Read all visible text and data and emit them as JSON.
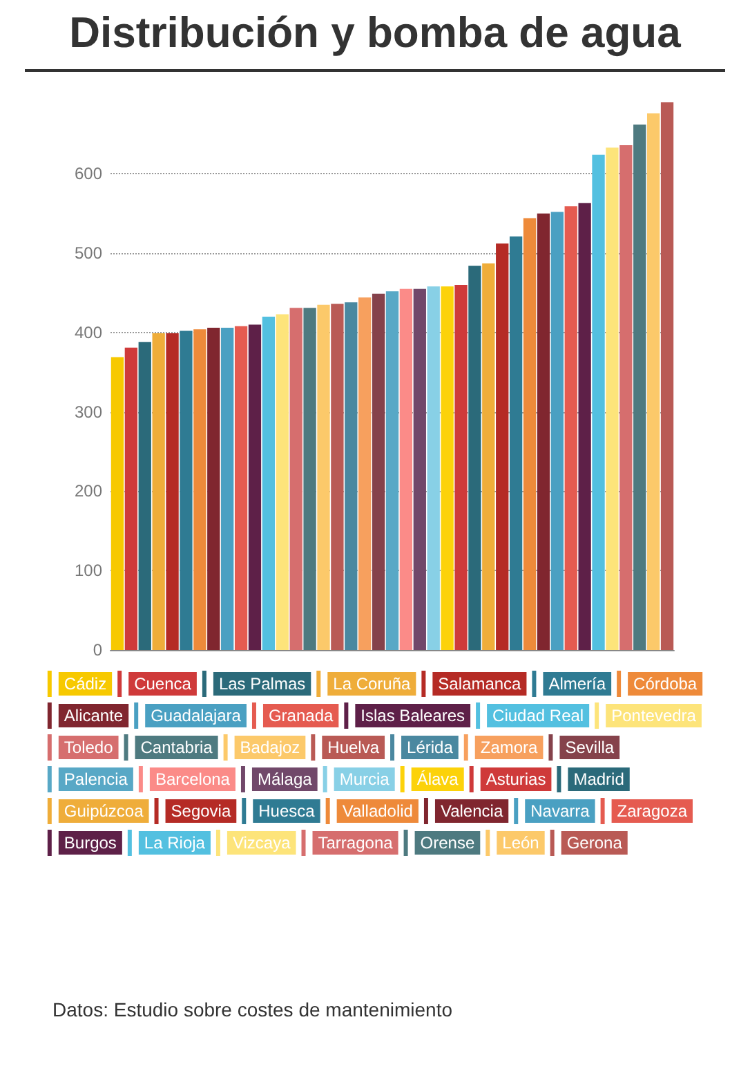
{
  "chart_data": {
    "type": "bar",
    "title": "Distribución y bomba de agua",
    "stacked": true,
    "legend": "bottom",
    "categories": [
      null,
      null,
      null,
      null,
      null,
      null,
      null,
      null,
      null,
      null,
      null,
      null,
      null,
      null,
      null,
      null,
      null,
      null,
      null,
      null,
      null,
      null,
      null,
      null,
      null,
      null,
      null,
      null,
      null,
      null,
      null,
      null,
      null,
      null,
      null,
      null,
      null,
      null,
      null,
      null,
      null
    ],
    "series": [
      {
        "name": "Cádiz",
        "color": "#f7c900",
        "values": [
          369,
          null,
          null,
          null,
          null,
          null,
          null,
          null,
          null,
          null,
          null,
          null,
          null,
          null,
          null,
          null,
          null,
          null,
          null,
          null,
          null,
          null,
          null,
          null,
          null,
          null,
          null,
          null,
          null,
          null,
          null,
          null,
          null,
          null,
          null,
          null,
          null,
          null,
          null,
          null,
          null
        ]
      },
      {
        "name": "Cuenca",
        "color": "#cf3a3a",
        "values": [
          null,
          381,
          null,
          null,
          null,
          null,
          null,
          null,
          null,
          null,
          null,
          null,
          null,
          null,
          null,
          null,
          null,
          null,
          null,
          null,
          null,
          null,
          null,
          null,
          null,
          null,
          null,
          null,
          null,
          null,
          null,
          null,
          null,
          null,
          null,
          null,
          null,
          null,
          null,
          null,
          null
        ]
      },
      {
        "name": "Las Palmas",
        "color": "#2b6a7a",
        "values": [
          null,
          null,
          388,
          null,
          null,
          null,
          null,
          null,
          null,
          null,
          null,
          null,
          null,
          null,
          null,
          null,
          null,
          null,
          null,
          null,
          null,
          null,
          null,
          null,
          null,
          null,
          null,
          null,
          null,
          null,
          null,
          null,
          null,
          null,
          null,
          null,
          null,
          null,
          null,
          null,
          null
        ]
      },
      {
        "name": "La Coruña",
        "color": "#efad3a",
        "values": [
          null,
          null,
          null,
          399,
          null,
          null,
          null,
          null,
          null,
          null,
          null,
          null,
          null,
          null,
          null,
          null,
          null,
          null,
          null,
          null,
          null,
          null,
          null,
          null,
          null,
          null,
          null,
          null,
          null,
          null,
          null,
          null,
          null,
          null,
          null,
          null,
          null,
          null,
          null,
          null,
          null
        ]
      },
      {
        "name": "Salamanca",
        "color": "#b52b25",
        "values": [
          null,
          null,
          null,
          null,
          399,
          null,
          null,
          null,
          null,
          null,
          null,
          null,
          null,
          null,
          null,
          null,
          null,
          null,
          null,
          null,
          null,
          null,
          null,
          null,
          null,
          null,
          null,
          null,
          null,
          null,
          null,
          null,
          null,
          null,
          null,
          null,
          null,
          null,
          null,
          null,
          null
        ]
      },
      {
        "name": "Almería",
        "color": "#2f7b93",
        "values": [
          null,
          null,
          null,
          null,
          null,
          402,
          null,
          null,
          null,
          null,
          null,
          null,
          null,
          null,
          null,
          null,
          null,
          null,
          null,
          null,
          null,
          null,
          null,
          null,
          null,
          null,
          null,
          null,
          null,
          null,
          null,
          null,
          null,
          null,
          null,
          null,
          null,
          null,
          null,
          null,
          null
        ]
      },
      {
        "name": "Córdoba",
        "color": "#ee8a3a",
        "values": [
          null,
          null,
          null,
          null,
          null,
          null,
          404,
          null,
          null,
          null,
          null,
          null,
          null,
          null,
          null,
          null,
          null,
          null,
          null,
          null,
          null,
          null,
          null,
          null,
          null,
          null,
          null,
          null,
          null,
          null,
          null,
          null,
          null,
          null,
          null,
          null,
          null,
          null,
          null,
          null,
          null
        ]
      },
      {
        "name": "Alicante",
        "color": "#80262f",
        "values": [
          null,
          null,
          null,
          null,
          null,
          null,
          null,
          406,
          null,
          null,
          null,
          null,
          null,
          null,
          null,
          null,
          null,
          null,
          null,
          null,
          null,
          null,
          null,
          null,
          null,
          null,
          null,
          null,
          null,
          null,
          null,
          null,
          null,
          null,
          null,
          null,
          null,
          null,
          null,
          null,
          null
        ]
      },
      {
        "name": "Guadalajara",
        "color": "#4aa0c2",
        "values": [
          null,
          null,
          null,
          null,
          null,
          null,
          null,
          null,
          406,
          null,
          null,
          null,
          null,
          null,
          null,
          null,
          null,
          null,
          null,
          null,
          null,
          null,
          null,
          null,
          null,
          null,
          null,
          null,
          null,
          null,
          null,
          null,
          null,
          null,
          null,
          null,
          null,
          null,
          null,
          null,
          null
        ]
      },
      {
        "name": "Granada",
        "color": "#e55b50",
        "values": [
          null,
          null,
          null,
          null,
          null,
          null,
          null,
          null,
          null,
          408,
          null,
          null,
          null,
          null,
          null,
          null,
          null,
          null,
          null,
          null,
          null,
          null,
          null,
          null,
          null,
          null,
          null,
          null,
          null,
          null,
          null,
          null,
          null,
          null,
          null,
          null,
          null,
          null,
          null,
          null,
          null
        ]
      },
      {
        "name": "Islas Baleares",
        "color": "#5e2048",
        "values": [
          null,
          null,
          null,
          null,
          null,
          null,
          null,
          null,
          null,
          null,
          410,
          null,
          null,
          null,
          null,
          null,
          null,
          null,
          null,
          null,
          null,
          null,
          null,
          null,
          null,
          null,
          null,
          null,
          null,
          null,
          null,
          null,
          null,
          null,
          null,
          null,
          null,
          null,
          null,
          null,
          null
        ]
      },
      {
        "name": "Ciudad Real",
        "color": "#53c0e0",
        "values": [
          null,
          null,
          null,
          null,
          null,
          null,
          null,
          null,
          null,
          null,
          null,
          420,
          null,
          null,
          null,
          null,
          null,
          null,
          null,
          null,
          null,
          null,
          null,
          null,
          null,
          null,
          null,
          null,
          null,
          null,
          null,
          null,
          null,
          null,
          null,
          null,
          null,
          null,
          null,
          null,
          null
        ]
      },
      {
        "name": "Pontevedra",
        "color": "#fde47a",
        "values": [
          null,
          null,
          null,
          null,
          null,
          null,
          null,
          null,
          null,
          null,
          null,
          null,
          423,
          null,
          null,
          null,
          null,
          null,
          null,
          null,
          null,
          null,
          null,
          null,
          null,
          null,
          null,
          null,
          null,
          null,
          null,
          null,
          null,
          null,
          null,
          null,
          null,
          null,
          null,
          null,
          null
        ]
      },
      {
        "name": "Toledo",
        "color": "#d66e6e",
        "values": [
          null,
          null,
          null,
          null,
          null,
          null,
          null,
          null,
          null,
          null,
          null,
          null,
          null,
          431,
          null,
          null,
          null,
          null,
          null,
          null,
          null,
          null,
          null,
          null,
          null,
          null,
          null,
          null,
          null,
          null,
          null,
          null,
          null,
          null,
          null,
          null,
          null,
          null,
          null,
          null,
          null
        ]
      },
      {
        "name": "Cantabria",
        "color": "#4e7a80",
        "values": [
          null,
          null,
          null,
          null,
          null,
          null,
          null,
          null,
          null,
          null,
          null,
          null,
          null,
          null,
          431,
          null,
          null,
          null,
          null,
          null,
          null,
          null,
          null,
          null,
          null,
          null,
          null,
          null,
          null,
          null,
          null,
          null,
          null,
          null,
          null,
          null,
          null,
          null,
          null,
          null,
          null
        ]
      },
      {
        "name": "Badajoz",
        "color": "#fcc96a",
        "values": [
          null,
          null,
          null,
          null,
          null,
          null,
          null,
          null,
          null,
          null,
          null,
          null,
          null,
          null,
          null,
          435,
          null,
          null,
          null,
          null,
          null,
          null,
          null,
          null,
          null,
          null,
          null,
          null,
          null,
          null,
          null,
          null,
          null,
          null,
          null,
          null,
          null,
          null,
          null,
          null,
          null
        ]
      },
      {
        "name": "Huelva",
        "color": "#b95a55",
        "values": [
          null,
          null,
          null,
          null,
          null,
          null,
          null,
          null,
          null,
          null,
          null,
          null,
          null,
          null,
          null,
          null,
          436,
          null,
          null,
          null,
          null,
          null,
          null,
          null,
          null,
          null,
          null,
          null,
          null,
          null,
          null,
          null,
          null,
          null,
          null,
          null,
          null,
          null,
          null,
          null,
          null
        ]
      },
      {
        "name": "Lérida",
        "color": "#4a88a0",
        "values": [
          null,
          null,
          null,
          null,
          null,
          null,
          null,
          null,
          null,
          null,
          null,
          null,
          null,
          null,
          null,
          null,
          null,
          438,
          null,
          null,
          null,
          null,
          null,
          null,
          null,
          null,
          null,
          null,
          null,
          null,
          null,
          null,
          null,
          null,
          null,
          null,
          null,
          null,
          null,
          null,
          null
        ]
      },
      {
        "name": "Zamora",
        "color": "#f7a05e",
        "values": [
          null,
          null,
          null,
          null,
          null,
          null,
          null,
          null,
          null,
          null,
          null,
          null,
          null,
          null,
          null,
          null,
          null,
          null,
          444,
          null,
          null,
          null,
          null,
          null,
          null,
          null,
          null,
          null,
          null,
          null,
          null,
          null,
          null,
          null,
          null,
          null,
          null,
          null,
          null,
          null,
          null
        ]
      },
      {
        "name": "Sevilla",
        "color": "#85424b",
        "values": [
          null,
          null,
          null,
          null,
          null,
          null,
          null,
          null,
          null,
          null,
          null,
          null,
          null,
          null,
          null,
          null,
          null,
          null,
          null,
          449,
          null,
          null,
          null,
          null,
          null,
          null,
          null,
          null,
          null,
          null,
          null,
          null,
          null,
          null,
          null,
          null,
          null,
          null,
          null,
          null,
          null
        ]
      },
      {
        "name": "Palencia",
        "color": "#58a8c6",
        "values": [
          null,
          null,
          null,
          null,
          null,
          null,
          null,
          null,
          null,
          null,
          null,
          null,
          null,
          null,
          null,
          null,
          null,
          null,
          null,
          null,
          452,
          null,
          null,
          null,
          null,
          null,
          null,
          null,
          null,
          null,
          null,
          null,
          null,
          null,
          null,
          null,
          null,
          null,
          null,
          null,
          null
        ]
      },
      {
        "name": "Barcelona",
        "color": "#fb8b88",
        "values": [
          null,
          null,
          null,
          null,
          null,
          null,
          null,
          null,
          null,
          null,
          null,
          null,
          null,
          null,
          null,
          null,
          null,
          null,
          null,
          null,
          null,
          455,
          null,
          null,
          null,
          null,
          null,
          null,
          null,
          null,
          null,
          null,
          null,
          null,
          null,
          null,
          null,
          null,
          null,
          null,
          null
        ]
      },
      {
        "name": "Málaga",
        "color": "#71486a",
        "values": [
          null,
          null,
          null,
          null,
          null,
          null,
          null,
          null,
          null,
          null,
          null,
          null,
          null,
          null,
          null,
          null,
          null,
          null,
          null,
          null,
          null,
          null,
          455,
          null,
          null,
          null,
          null,
          null,
          null,
          null,
          null,
          null,
          null,
          null,
          null,
          null,
          null,
          null,
          null,
          null,
          null
        ]
      },
      {
        "name": "Murcia",
        "color": "#88d0e6",
        "values": [
          null,
          null,
          null,
          null,
          null,
          null,
          null,
          null,
          null,
          null,
          null,
          null,
          null,
          null,
          null,
          null,
          null,
          null,
          null,
          null,
          null,
          null,
          null,
          458,
          null,
          null,
          null,
          null,
          null,
          null,
          null,
          null,
          null,
          null,
          null,
          null,
          null,
          null,
          null,
          null,
          null
        ]
      },
      {
        "name": "Álava",
        "color": "#fcd20a",
        "values": [
          null,
          null,
          null,
          null,
          null,
          null,
          null,
          null,
          null,
          null,
          null,
          null,
          null,
          null,
          null,
          null,
          null,
          null,
          null,
          null,
          null,
          null,
          null,
          null,
          458,
          null,
          null,
          null,
          null,
          null,
          null,
          null,
          null,
          null,
          null,
          null,
          null,
          null,
          null,
          null,
          null
        ]
      },
      {
        "name": "Asturias",
        "color": "#cf3a3a",
        "values": [
          null,
          null,
          null,
          null,
          null,
          null,
          null,
          null,
          null,
          null,
          null,
          null,
          null,
          null,
          null,
          null,
          null,
          null,
          null,
          null,
          null,
          null,
          null,
          null,
          null,
          460,
          null,
          null,
          null,
          null,
          null,
          null,
          null,
          null,
          null,
          null,
          null,
          null,
          null,
          null,
          null
        ]
      },
      {
        "name": "Madrid",
        "color": "#2b6a7a",
        "values": [
          null,
          null,
          null,
          null,
          null,
          null,
          null,
          null,
          null,
          null,
          null,
          null,
          null,
          null,
          null,
          null,
          null,
          null,
          null,
          null,
          null,
          null,
          null,
          null,
          null,
          null,
          484,
          null,
          null,
          null,
          null,
          null,
          null,
          null,
          null,
          null,
          null,
          null,
          null,
          null,
          null
        ]
      },
      {
        "name": "Guipúzcoa",
        "color": "#efad3a",
        "values": [
          null,
          null,
          null,
          null,
          null,
          null,
          null,
          null,
          null,
          null,
          null,
          null,
          null,
          null,
          null,
          null,
          null,
          null,
          null,
          null,
          null,
          null,
          null,
          null,
          null,
          null,
          null,
          487,
          null,
          null,
          null,
          null,
          null,
          null,
          null,
          null,
          null,
          null,
          null,
          null,
          null
        ]
      },
      {
        "name": "Segovia",
        "color": "#b52b25",
        "values": [
          null,
          null,
          null,
          null,
          null,
          null,
          null,
          null,
          null,
          null,
          null,
          null,
          null,
          null,
          null,
          null,
          null,
          null,
          null,
          null,
          null,
          null,
          null,
          null,
          null,
          null,
          null,
          null,
          512,
          null,
          null,
          null,
          null,
          null,
          null,
          null,
          null,
          null,
          null,
          null,
          null
        ]
      },
      {
        "name": "Huesca",
        "color": "#2f7b93",
        "values": [
          null,
          null,
          null,
          null,
          null,
          null,
          null,
          null,
          null,
          null,
          null,
          null,
          null,
          null,
          null,
          null,
          null,
          null,
          null,
          null,
          null,
          null,
          null,
          null,
          null,
          null,
          null,
          null,
          null,
          521,
          null,
          null,
          null,
          null,
          null,
          null,
          null,
          null,
          null,
          null,
          null
        ]
      },
      {
        "name": "Valladolid",
        "color": "#ee8a3a",
        "values": [
          null,
          null,
          null,
          null,
          null,
          null,
          null,
          null,
          null,
          null,
          null,
          null,
          null,
          null,
          null,
          null,
          null,
          null,
          null,
          null,
          null,
          null,
          null,
          null,
          null,
          null,
          null,
          null,
          null,
          null,
          544,
          null,
          null,
          null,
          null,
          null,
          null,
          null,
          null,
          null,
          null
        ]
      },
      {
        "name": "Valencia",
        "color": "#80262f",
        "values": [
          null,
          null,
          null,
          null,
          null,
          null,
          null,
          null,
          null,
          null,
          null,
          null,
          null,
          null,
          null,
          null,
          null,
          null,
          null,
          null,
          null,
          null,
          null,
          null,
          null,
          null,
          null,
          null,
          null,
          null,
          null,
          550,
          null,
          null,
          null,
          null,
          null,
          null,
          null,
          null,
          null
        ]
      },
      {
        "name": "Navarra",
        "color": "#4aa0c2",
        "values": [
          null,
          null,
          null,
          null,
          null,
          null,
          null,
          null,
          null,
          null,
          null,
          null,
          null,
          null,
          null,
          null,
          null,
          null,
          null,
          null,
          null,
          null,
          null,
          null,
          null,
          null,
          null,
          null,
          null,
          null,
          null,
          null,
          552,
          null,
          null,
          null,
          null,
          null,
          null,
          null,
          null
        ]
      },
      {
        "name": "Zaragoza",
        "color": "#e55b50",
        "values": [
          null,
          null,
          null,
          null,
          null,
          null,
          null,
          null,
          null,
          null,
          null,
          null,
          null,
          null,
          null,
          null,
          null,
          null,
          null,
          null,
          null,
          null,
          null,
          null,
          null,
          null,
          null,
          null,
          null,
          null,
          null,
          null,
          null,
          559,
          null,
          null,
          null,
          null,
          null,
          null,
          null
        ]
      },
      {
        "name": "Burgos",
        "color": "#5e2048",
        "values": [
          null,
          null,
          null,
          null,
          null,
          null,
          null,
          null,
          null,
          null,
          null,
          null,
          null,
          null,
          null,
          null,
          null,
          null,
          null,
          null,
          null,
          null,
          null,
          null,
          null,
          null,
          null,
          null,
          null,
          null,
          null,
          null,
          null,
          null,
          563,
          null,
          null,
          null,
          null,
          null,
          null
        ]
      },
      {
        "name": "La Rioja",
        "color": "#53c0e0",
        "values": [
          null,
          null,
          null,
          null,
          null,
          null,
          null,
          null,
          null,
          null,
          null,
          null,
          null,
          null,
          null,
          null,
          null,
          null,
          null,
          null,
          null,
          null,
          null,
          null,
          null,
          null,
          null,
          null,
          null,
          null,
          null,
          null,
          null,
          null,
          null,
          624,
          null,
          null,
          null,
          null,
          null
        ]
      },
      {
        "name": "Vizcaya",
        "color": "#fde47a",
        "values": [
          null,
          null,
          null,
          null,
          null,
          null,
          null,
          null,
          null,
          null,
          null,
          null,
          null,
          null,
          null,
          null,
          null,
          null,
          null,
          null,
          null,
          null,
          null,
          null,
          null,
          null,
          null,
          null,
          null,
          null,
          null,
          null,
          null,
          null,
          null,
          null,
          633,
          null,
          null,
          null,
          null
        ]
      },
      {
        "name": "Tarragona",
        "color": "#d66e6e",
        "values": [
          null,
          null,
          null,
          null,
          null,
          null,
          null,
          null,
          null,
          null,
          null,
          null,
          null,
          null,
          null,
          null,
          null,
          null,
          null,
          null,
          null,
          null,
          null,
          null,
          null,
          null,
          null,
          null,
          null,
          null,
          null,
          null,
          null,
          null,
          null,
          null,
          null,
          636,
          null,
          null,
          null
        ]
      },
      {
        "name": "Orense",
        "color": "#4e7a80",
        "values": [
          null,
          null,
          null,
          null,
          null,
          null,
          null,
          null,
          null,
          null,
          null,
          null,
          null,
          null,
          null,
          null,
          null,
          null,
          null,
          null,
          null,
          null,
          null,
          null,
          null,
          null,
          null,
          null,
          null,
          null,
          null,
          null,
          null,
          null,
          null,
          null,
          null,
          null,
          662,
          null,
          null
        ]
      },
      {
        "name": "León",
        "color": "#fcc96a",
        "values": [
          null,
          null,
          null,
          null,
          null,
          null,
          null,
          null,
          null,
          null,
          null,
          null,
          null,
          null,
          null,
          null,
          null,
          null,
          null,
          null,
          null,
          null,
          null,
          null,
          null,
          null,
          null,
          null,
          null,
          null,
          null,
          null,
          null,
          null,
          null,
          null,
          null,
          null,
          null,
          676,
          null
        ]
      },
      {
        "name": "Gerona",
        "color": "#b95a55",
        "values": [
          null,
          null,
          null,
          null,
          null,
          null,
          null,
          null,
          null,
          null,
          null,
          null,
          null,
          null,
          null,
          null,
          null,
          null,
          null,
          null,
          null,
          null,
          null,
          null,
          null,
          null,
          null,
          null,
          null,
          null,
          null,
          null,
          null,
          null,
          null,
          null,
          null,
          null,
          null,
          null,
          690
        ]
      }
    ],
    "ylim": [
      0,
      690
    ],
    "yticks": [
      0,
      100,
      200,
      300,
      400,
      500,
      600
    ],
    "grid": "y",
    "tick_labels": "y",
    "annotations": [
      "Datos: Estudio sobre costes de mantenimiento"
    ]
  }
}
